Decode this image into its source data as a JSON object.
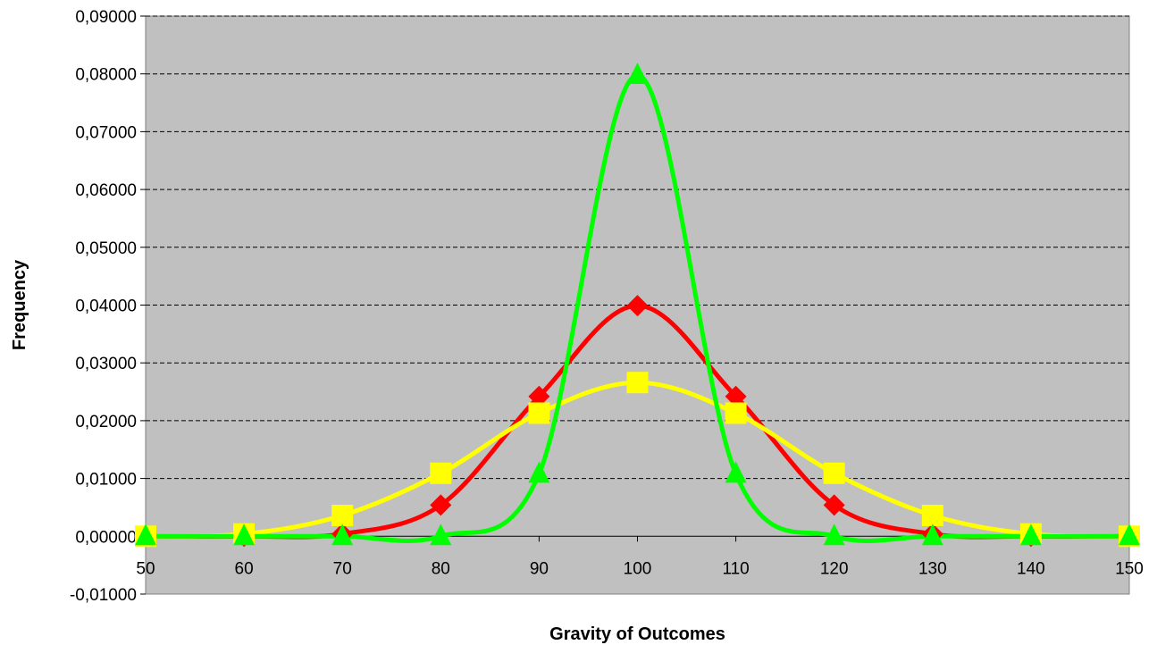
{
  "chart_data": {
    "type": "line",
    "title": "",
    "xlabel": "Gravity of Outcomes",
    "ylabel": "Frequency",
    "xlim": [
      50,
      150
    ],
    "ylim": [
      -0.01,
      0.09
    ],
    "x": [
      50,
      60,
      70,
      80,
      90,
      100,
      110,
      120,
      130,
      140,
      150
    ],
    "x_tick_labels": [
      "50",
      "60",
      "70",
      "80",
      "90",
      "100",
      "110",
      "120",
      "130",
      "140",
      "150"
    ],
    "y_ticks": [
      -0.01,
      0,
      0.01,
      0.02,
      0.03,
      0.04,
      0.05,
      0.06,
      0.07,
      0.08,
      0.09
    ],
    "y_tick_labels": [
      "-0,01000",
      "0,00000",
      "0,01000",
      "0,02000",
      "0,03000",
      "0,04000",
      "0,05000",
      "0,06000",
      "0,07000",
      "0,08000",
      "0,09000"
    ],
    "grid": "horizontal dashed",
    "legend": "none",
    "plot_background": "#c0c0c0",
    "series": [
      {
        "color": "#ff0000",
        "marker": "diamond",
        "values": [
          0.0,
          0.0,
          0.0004,
          0.0054,
          0.0242,
          0.0399,
          0.0242,
          0.0054,
          0.0004,
          0.0,
          0.0
        ]
      },
      {
        "color": "#ffff00",
        "marker": "square",
        "values": [
          0.0,
          0.0004,
          0.0036,
          0.0109,
          0.0213,
          0.0266,
          0.0213,
          0.0109,
          0.0036,
          0.0004,
          0.0
        ]
      },
      {
        "color": "#00ff00",
        "marker": "triangle",
        "values": [
          0.0,
          0.0,
          0.0,
          0.0,
          0.0108,
          0.0798,
          0.0108,
          0.0,
          0.0,
          0.0,
          0.0
        ]
      }
    ]
  }
}
